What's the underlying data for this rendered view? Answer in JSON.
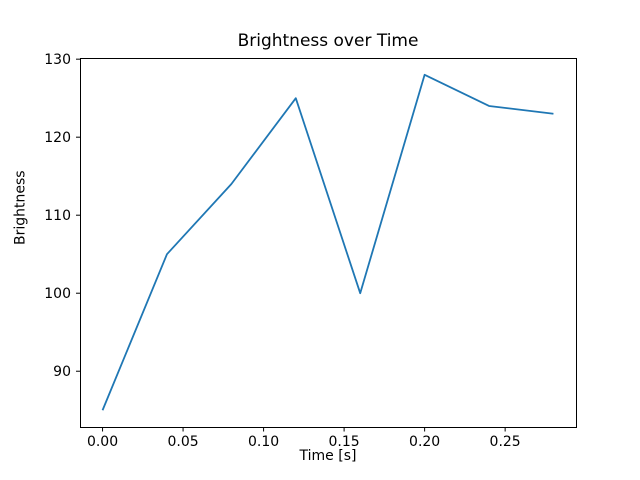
{
  "chart_data": {
    "type": "line",
    "title": "Brightness over Time",
    "xlabel": "Time [s]",
    "ylabel": "Brightness",
    "x": [
      0.0,
      0.04,
      0.08,
      0.12,
      0.16,
      0.2,
      0.24,
      0.28
    ],
    "y": [
      85,
      105,
      114,
      125,
      100,
      128,
      124,
      123
    ],
    "xticks": [
      0.0,
      0.05,
      0.1,
      0.15,
      0.2,
      0.25
    ],
    "xtick_labels": [
      "0.00",
      "0.05",
      "0.10",
      "0.15",
      "0.20",
      "0.25"
    ],
    "yticks": [
      90,
      100,
      110,
      120,
      130
    ],
    "ytick_labels": [
      "90",
      "100",
      "110",
      "120",
      "130"
    ],
    "xlim": [
      -0.014,
      0.294
    ],
    "ylim": [
      82.85,
      130.15
    ],
    "grid": false,
    "legend": false,
    "line_color": "#1f77b4",
    "axis_color": "#000000",
    "background_color": "#ffffff"
  }
}
